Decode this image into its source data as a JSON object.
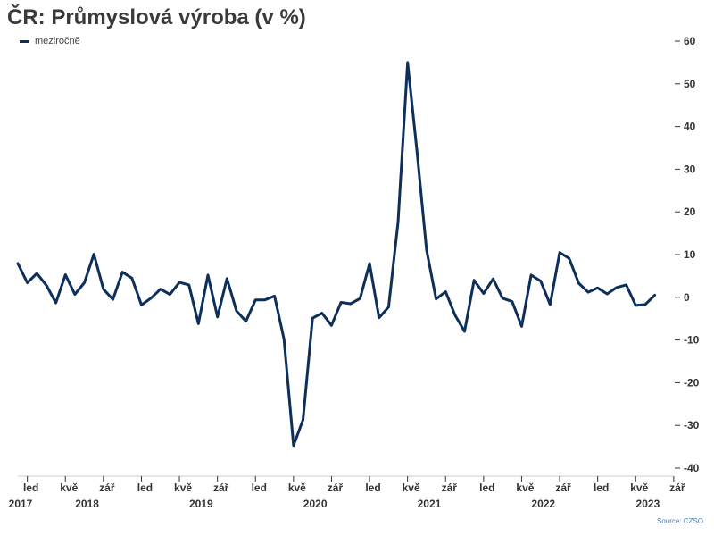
{
  "title": "ČR: Průmyslová výroba (v %)",
  "source": "Source: CZSO",
  "chart_data": {
    "type": "line",
    "title": "ČR: Průmyslová výroba (v %)",
    "ylim": [
      -40,
      60
    ],
    "y_ticks": [
      60,
      50,
      40,
      30,
      20,
      10,
      0,
      -10,
      -20,
      -30,
      -40
    ],
    "y_axis_position": "right",
    "grid": false,
    "legend_position": "top-left",
    "x_month_ticks": [
      {
        "label": "led",
        "index": 1
      },
      {
        "label": "kvě",
        "index": 5
      },
      {
        "label": "zář",
        "index": 9
      },
      {
        "label": "led",
        "index": 13
      },
      {
        "label": "kvě",
        "index": 17
      },
      {
        "label": "zář",
        "index": 21
      },
      {
        "label": "led",
        "index": 25
      },
      {
        "label": "kvě",
        "index": 29
      },
      {
        "label": "zář",
        "index": 33
      },
      {
        "label": "led",
        "index": 37
      },
      {
        "label": "kvě",
        "index": 41
      },
      {
        "label": "zář",
        "index": 45
      },
      {
        "label": "led",
        "index": 49
      },
      {
        "label": "kvě",
        "index": 53
      },
      {
        "label": "zář",
        "index": 57
      },
      {
        "label": "led",
        "index": 61
      },
      {
        "label": "kvě",
        "index": 65
      },
      {
        "label": "zář",
        "index": 69
      }
    ],
    "x_year_labels": [
      {
        "label": "2017",
        "index": 0
      },
      {
        "label": "2018",
        "index": 7
      },
      {
        "label": "2019",
        "index": 19
      },
      {
        "label": "2020",
        "index": 31
      },
      {
        "label": "2021",
        "index": 43
      },
      {
        "label": "2022",
        "index": 55
      },
      {
        "label": "2023",
        "index": 66
      }
    ],
    "series": [
      {
        "name": "meziročně",
        "color": "#0d2f5a",
        "values": [
          7.9,
          3.4,
          5.6,
          2.8,
          -1.3,
          5.3,
          0.7,
          3.4,
          10.1,
          1.9,
          -0.5,
          5.9,
          4.5,
          -1.8,
          -0.2,
          1.9,
          0.7,
          3.5,
          2.9,
          -6.2,
          5.2,
          -4.6,
          4.4,
          -3.2,
          -5.6,
          -0.6,
          -0.6,
          0.3,
          -9.8,
          -34.7,
          -28.7,
          -4.9,
          -3.7,
          -6.6,
          -1.2,
          -1.5,
          -0.3,
          7.9,
          -4.8,
          -2.3,
          17.6,
          55.0,
          34.0,
          11.1,
          -0.4,
          1.3,
          -4.2,
          -8.0,
          4.0,
          0.9,
          4.3,
          -0.2,
          -1.0,
          -6.8,
          5.2,
          3.8,
          -1.7,
          10.5,
          9.1,
          3.3,
          1.2,
          2.2,
          0.8,
          2.3,
          2.9,
          -1.9,
          -1.7,
          0.5
        ]
      }
    ]
  }
}
